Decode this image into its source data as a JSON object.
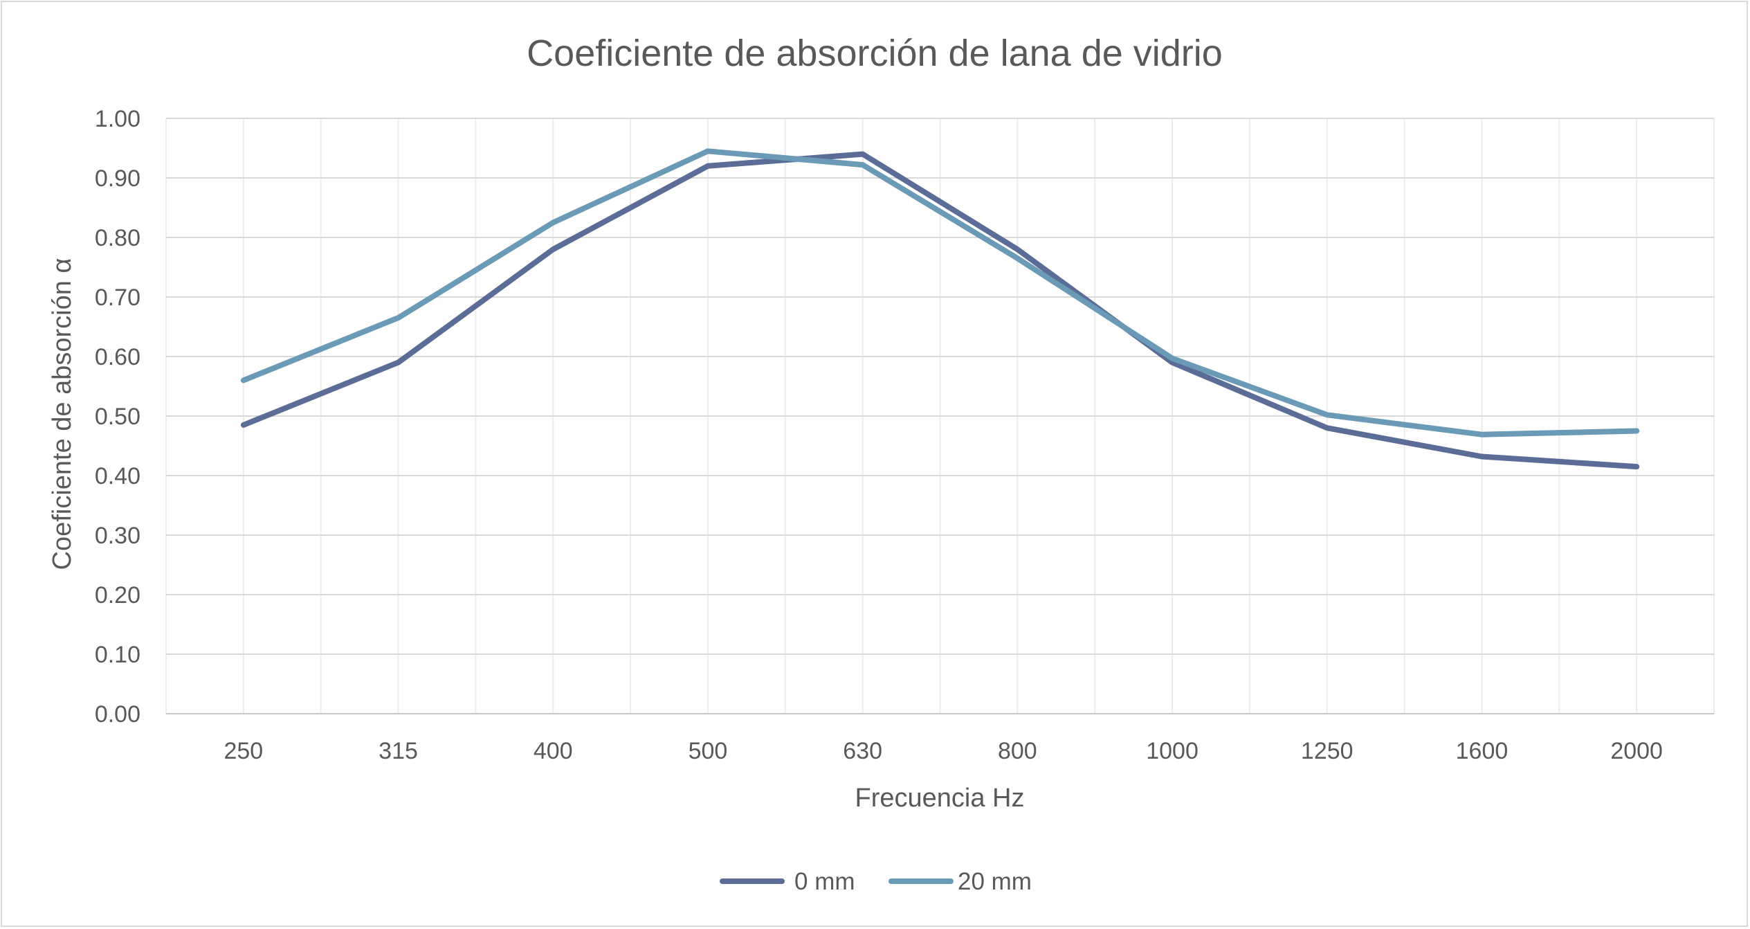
{
  "chart_data": {
    "type": "line",
    "title": "Coeficiente de absorción de lana de vidrio",
    "xlabel": "Frecuencia Hz",
    "ylabel": "Coeficiente de absorción α",
    "categories": [
      "250",
      "315",
      "400",
      "500",
      "630",
      "800",
      "1000",
      "1250",
      "1600",
      "2000"
    ],
    "ylim": [
      0,
      1
    ],
    "ytick_step": 0.1,
    "ytick_decimals": 2,
    "grid": true,
    "legend_position": "bottom",
    "series": [
      {
        "name": "0 mm",
        "color": "#5b6c97",
        "values": [
          0.485,
          0.59,
          0.78,
          0.92,
          0.94,
          0.78,
          0.59,
          0.48,
          0.432,
          0.415
        ]
      },
      {
        "name": "20 mm",
        "color": "#6a9ab5",
        "values": [
          0.56,
          0.665,
          0.825,
          0.945,
          0.922,
          0.765,
          0.597,
          0.502,
          0.469,
          0.475
        ]
      }
    ]
  }
}
